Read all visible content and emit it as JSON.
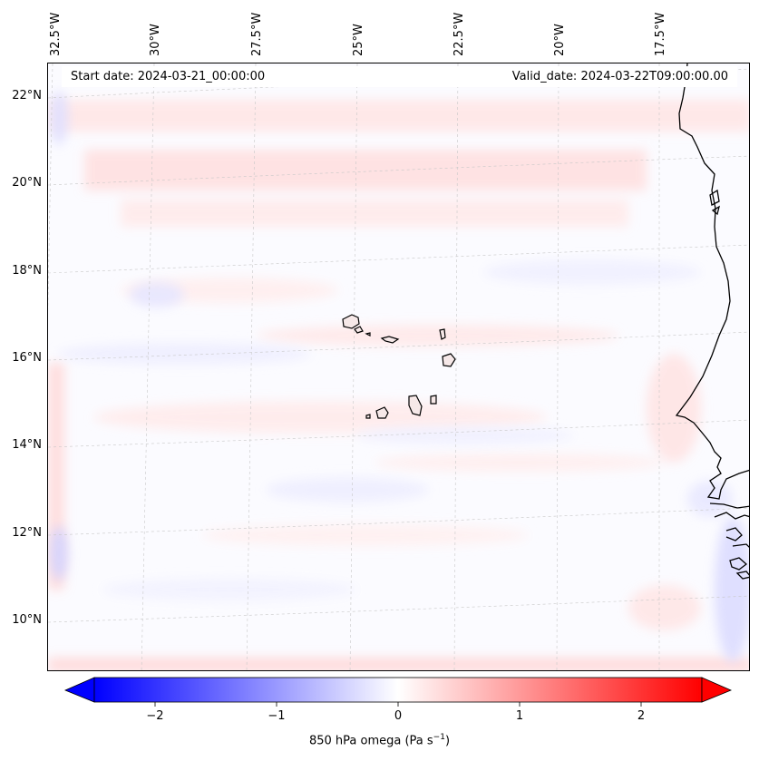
{
  "map": {
    "start_date": "Start date: 2024-03-21_00:00:00",
    "valid_date": "Valid_date: 2024-03-22T09:00:00.00",
    "lon_labels": [
      "32.5°W",
      "30°W",
      "27.5°W",
      "25°W",
      "22.5°W",
      "20°W",
      "17.5°W"
    ],
    "lat_labels": [
      "22°N",
      "20°N",
      "18°N",
      "16°N",
      "14°N",
      "12°N",
      "10°N"
    ],
    "gridlines": true,
    "gridline_style": "dashed",
    "colormap": "bwr",
    "colors": {
      "negative": "#0000ff",
      "zero": "#ffffff",
      "positive": "#ff0000"
    },
    "region": "Cape Verde Islands and West African coast"
  },
  "colorbar": {
    "label": "850 hPa omega (Pa s",
    "label_superscript": "−1",
    "label_close": ")",
    "ticks": [
      "−2",
      "−1",
      "0",
      "1",
      "2"
    ],
    "range": [
      -2.5,
      2.5
    ],
    "extend": "both"
  }
}
